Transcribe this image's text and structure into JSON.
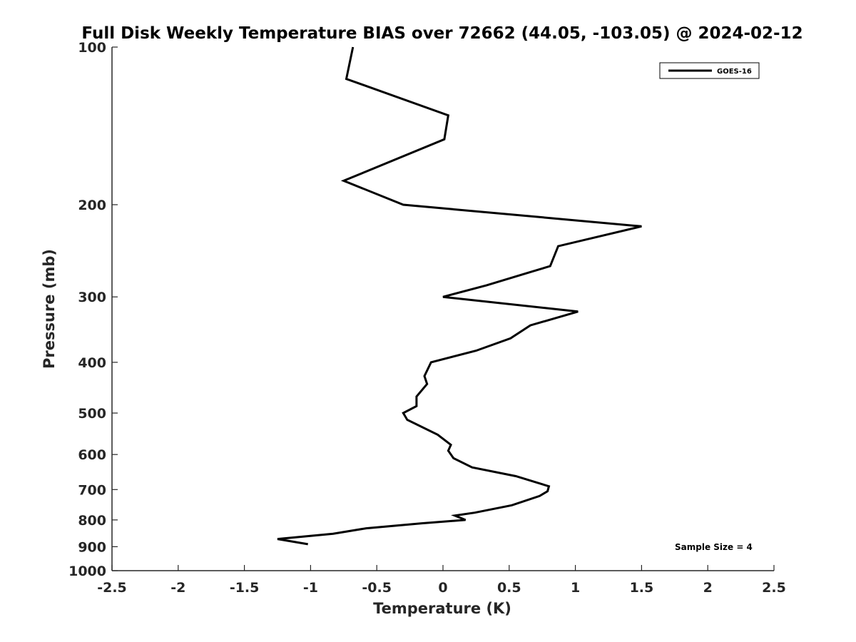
{
  "chart_data": {
    "type": "line",
    "title": "Full Disk Weekly Temperature BIAS over 72662 (44.05, -103.05) @ 2024-02-12",
    "xlabel": "Temperature (K)",
    "ylabel": "Pressure (mb)",
    "xlim": [
      -2.5,
      2.5
    ],
    "ylim": [
      100,
      1000
    ],
    "y_scale": "log",
    "y_reversed": true,
    "x_ticks": [
      "-2.5",
      "-2",
      "-1.5",
      "-1",
      "-0.5",
      "0",
      "0.5",
      "1",
      "1.5",
      "2",
      "2.5"
    ],
    "y_ticks": [
      "100",
      "200",
      "300",
      "400",
      "500",
      "600",
      "700",
      "800",
      "900",
      "1000"
    ],
    "grid": false,
    "legend_position": "top-right",
    "line_color": "#000000",
    "series": [
      {
        "name": "GOES-16",
        "x": [
          -0.68,
          -0.73,
          0.04,
          0.01,
          -0.75,
          -0.3,
          1.5,
          0.87,
          0.81,
          0.33,
          0.0,
          1.02,
          0.66,
          0.51,
          0.25,
          -0.09,
          -0.14,
          -0.12,
          -0.2,
          -0.2,
          -0.3,
          -0.27,
          -0.04,
          0.06,
          0.04,
          0.08,
          0.22,
          0.55,
          0.8,
          0.79,
          0.73,
          0.52,
          0.24,
          0.09,
          0.17,
          -0.16,
          -0.58,
          -0.83,
          -1.25,
          -1.02
        ],
        "y": [
          100,
          115,
          135,
          150,
          180,
          200,
          220,
          240,
          262,
          285,
          300,
          320,
          340,
          360,
          380,
          400,
          425,
          440,
          465,
          485,
          500,
          515,
          550,
          575,
          590,
          610,
          635,
          660,
          690,
          705,
          720,
          750,
          775,
          785,
          800,
          812,
          830,
          850,
          870,
          890
        ]
      }
    ],
    "annotations": [
      "Sample Size = 4"
    ]
  }
}
